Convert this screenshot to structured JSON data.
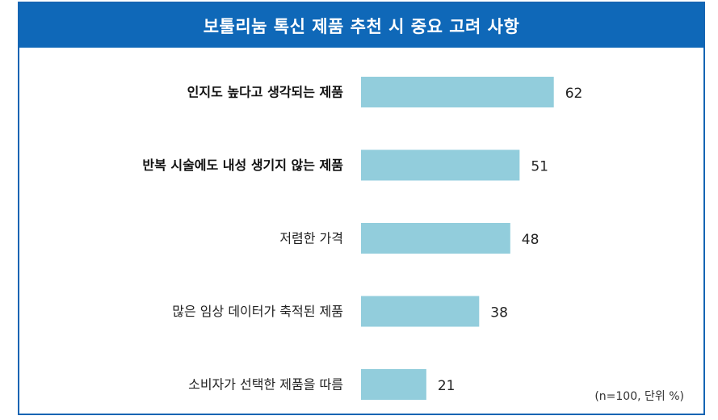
{
  "chart_data": {
    "type": "bar",
    "orientation": "horizontal",
    "title": "보툴리눔 톡신 제품 추천 시 중요 고려 사항",
    "categories": [
      "인지도 높다고 생각되는 제품",
      "반복 시술에도 내성 생기지 않는 제품",
      "저렴한 가격",
      "많은 임상 데이터가 축적된 제품",
      "소비자가 선택한 제품을 따름"
    ],
    "emphasized": [
      true,
      true,
      false,
      false,
      false
    ],
    "values": [
      62,
      51,
      48,
      38,
      21
    ],
    "note": "(n=100, 단위 %)",
    "xlim": [
      0,
      100
    ],
    "grid": false,
    "legend": "none",
    "bar_color": "#92cddc",
    "title_bg_color": "#0f68b8",
    "border_color": "#1565b3"
  }
}
